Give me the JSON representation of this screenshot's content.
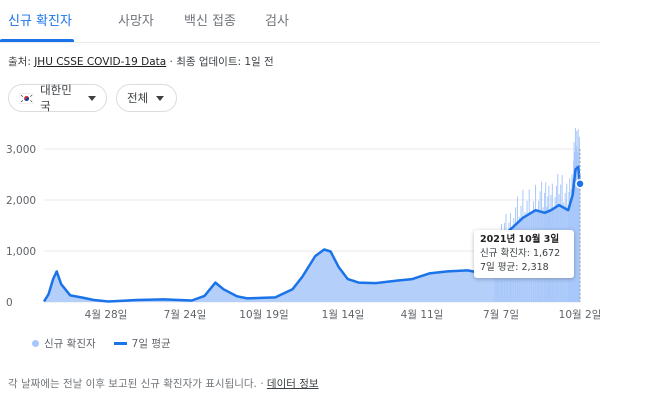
{
  "tabs": [
    {
      "label": "신규 확진자",
      "active": true
    },
    {
      "label": "사망자",
      "active": false
    },
    {
      "label": "백신 접종",
      "active": false
    },
    {
      "label": "검사",
      "active": false
    }
  ],
  "source": {
    "prefix": "출처:",
    "link": "JHU CSSE COVID-19 Data",
    "suffix": "· 최종 업데이트: 1일 전"
  },
  "filters": {
    "region": "대한민국",
    "scope": "전체"
  },
  "tooltip": {
    "date": "2021년 10월 3일",
    "cases_line": "신규 확진자: 1,672",
    "avg_line": "7일 평균: 2,318"
  },
  "legend": {
    "cases": "신규 확진자",
    "avg": "7일 평균"
  },
  "footer": {
    "note": "각 날짜에는 전날 이후 보고된 신규 확진자가 표시됩니다.",
    "sep": "·",
    "link": "데이터 정보"
  },
  "colors": {
    "accent": "#1a73e8",
    "area": "#a8c7fa",
    "grid": "#e8eaed"
  },
  "chart_data": {
    "type": "area",
    "ylim": [
      0,
      3000
    ],
    "yticks": [
      "0",
      "1,000",
      "2,000",
      "3,000"
    ],
    "xtick_labels": [
      "4월 28일",
      "7월 24일",
      "10월 19일",
      "1월 14일",
      "4월 11일",
      "7월 7일",
      "10월 2일"
    ],
    "series": [
      {
        "name": "7일 평균",
        "kind": "line",
        "x": [
          "2020-02-20",
          "2020-02-25",
          "2020-03-01",
          "2020-03-05",
          "2020-03-10",
          "2020-03-20",
          "2020-04-01",
          "2020-04-15",
          "2020-05-01",
          "2020-06-01",
          "2020-07-01",
          "2020-08-01",
          "2020-08-15",
          "2020-08-27",
          "2020-09-05",
          "2020-09-20",
          "2020-10-01",
          "2020-11-01",
          "2020-11-20",
          "2020-12-01",
          "2020-12-15",
          "2020-12-25",
          "2021-01-01",
          "2021-01-10",
          "2021-01-20",
          "2021-02-01",
          "2021-02-20",
          "2021-03-15",
          "2021-04-01",
          "2021-04-20",
          "2021-05-10",
          "2021-06-01",
          "2021-06-25",
          "2021-07-01",
          "2021-07-10",
          "2021-07-20",
          "2021-08-01",
          "2021-08-15",
          "2021-08-25",
          "2021-09-01",
          "2021-09-10",
          "2021-09-20",
          "2021-09-25",
          "2021-09-28",
          "2021-10-01",
          "2021-10-03"
        ],
        "values": [
          10,
          150,
          450,
          600,
          350,
          130,
          90,
          40,
          10,
          40,
          50,
          30,
          120,
          380,
          250,
          110,
          70,
          90,
          250,
          500,
          900,
          1030,
          990,
          680,
          450,
          380,
          370,
          420,
          450,
          560,
          600,
          620,
          540,
          700,
          1300,
          1450,
          1650,
          1800,
          1750,
          1800,
          1900,
          1800,
          2100,
          2600,
          2650,
          2318
        ]
      }
    ],
    "tooltip_point": {
      "date": "2021-10-03",
      "cases": 1672,
      "avg": 2318
    }
  }
}
